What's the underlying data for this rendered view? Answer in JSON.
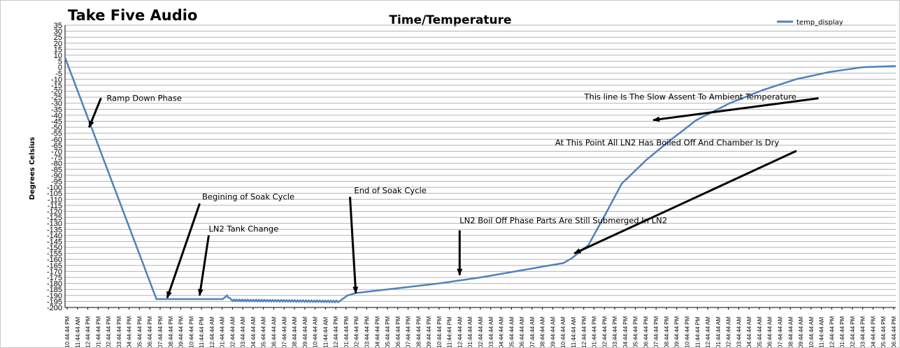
{
  "header": {
    "brand": "Take Five Audio"
  },
  "chart_data": {
    "type": "line",
    "title": "Time/Temperature",
    "ylabel": "Degrees Celsius",
    "xlabel": "",
    "ylim": [
      -200,
      35
    ],
    "ystep": 5,
    "grid": true,
    "legend_position": "top-right",
    "x_tick_labels": [
      "10:44:44 PM",
      "11:44:44 AM",
      "12:44:44 PM",
      "01:44:44 PM",
      "02:44:44 PM",
      "03:44:44 PM",
      "04:44:44 PM",
      "05:44:44 PM",
      "06:44:44 PM",
      "07:44:44 PM",
      "08:44:44 PM",
      "09:44:44 PM",
      "10:44:44 PM",
      "11:44:44 PM",
      "12:44:44 AM",
      "01:44:44 AM",
      "02:44:44 AM",
      "03:44:44 AM",
      "04:44:44 AM",
      "05:44:44 AM",
      "06:44:44 AM",
      "07:44:44 AM",
      "08:44:44 AM",
      "09:44:44 AM",
      "10:44:44 AM",
      "11:44:44 AM",
      "12:44:44 PM",
      "01:44:44 PM",
      "02:44:44 PM",
      "03:44:44 PM",
      "04:44:44 PM",
      "05:44:44 PM",
      "06:44:44 PM",
      "07:44:44 PM",
      "08:44:44 PM",
      "09:44:44 PM",
      "10:44:44 PM",
      "11:44:44 PM",
      "12:44:44 AM",
      "01:44:44 AM",
      "02:44:44 AM",
      "03:44:44 AM",
      "04:44:44 AM",
      "05:44:44 AM",
      "06:44:44 AM",
      "07:44:44 AM",
      "08:44:44 AM",
      "09:44:44 AM",
      "10:44:44 AM",
      "11:44:44 AM",
      "12:44:44 PM",
      "01:44:44 PM",
      "02:44:44 PM",
      "03:44:44 PM",
      "04:44:44 PM",
      "05:44:44 PM",
      "06:44:44 PM",
      "07:44:44 PM",
      "08:44:44 PM",
      "09:44:44 PM",
      "10:44:44 PM",
      "11:44:44 PM",
      "12:44:44 AM",
      "01:44:44 AM",
      "02:44:44 AM",
      "03:44:44 AM",
      "04:44:44 AM",
      "05:44:44 AM",
      "06:44:44 AM",
      "07:44:44 AM",
      "08:44:44 AM",
      "09:44:44 AM",
      "10:44:44 AM",
      "11:44:44 AM",
      "12:44:44 PM",
      "01:44:44 PM",
      "02:44:44 PM",
      "03:44:44 PM",
      "04:44:44 PM",
      "05:44:44 PM",
      "06:44:44 PM"
    ],
    "series": [
      {
        "name": "temp_display",
        "color": "#4f81bd",
        "x": [
          0,
          11,
          11.5,
          19,
          19.5,
          20,
          33,
          34,
          35,
          40,
          45,
          50,
          55,
          60,
          61,
          63,
          65,
          67,
          70,
          73,
          76,
          80,
          84,
          88,
          92,
          96,
          100
        ],
        "y": [
          8,
          -193,
          -193,
          -193,
          -190,
          -194,
          -195,
          -190,
          -188,
          -184,
          -180,
          -175,
          -169,
          -163,
          -159,
          -148,
          -123,
          -97,
          -77,
          -60,
          -44,
          -30,
          -19,
          -10,
          -4,
          0,
          1
        ]
      }
    ],
    "annotations": [
      {
        "text": "Ramp Down Phase",
        "x": 5,
        "y": -28,
        "arrow_x": 2.9,
        "arrow_y": -50
      },
      {
        "text": "Begining of Soak Cycle",
        "x": 16.5,
        "y": -110,
        "arrow_x": 12.3,
        "arrow_y": -192
      },
      {
        "text": "LN2 Tank Change",
        "x": 17.3,
        "y": -137,
        "arrow_x": 16.2,
        "arrow_y": -190
      },
      {
        "text": "End of Soak Cycle",
        "x": 34.8,
        "y": -105,
        "arrow_x": 35.0,
        "arrow_y": -188
      },
      {
        "text": "LN2 Boil Off Phase Parts Are Still Submerged In LN2",
        "x": 47.5,
        "y": -130,
        "arrow_x": 47.5,
        "arrow_y": -173
      },
      {
        "text": "At This Point All LN2 Has Boiled Off And Chamber Is Dry",
        "x": 59,
        "y": -65,
        "arrow_x": 61.3,
        "arrow_y": -155
      },
      {
        "text": "This line Is The Slow Assent To Ambient Temperature",
        "x": 62.5,
        "y": -27,
        "arrow_x": 70.8,
        "arrow_y": -44
      }
    ]
  }
}
